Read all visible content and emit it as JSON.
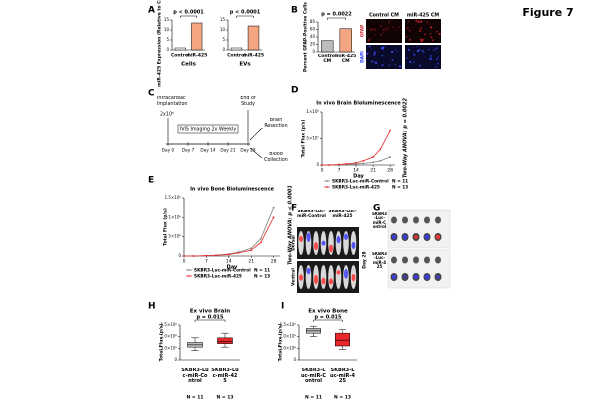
{
  "figure": {
    "title": "Figure 7",
    "panels": [
      "A",
      "B",
      "C",
      "D",
      "E",
      "F",
      "G",
      "H",
      "I"
    ]
  },
  "chart_data": [
    {
      "type": "bar",
      "ylabel": "miR-425 Expression (Relative to Control)",
      "xlabel": "Cells",
      "categories": [
        "Control",
        "miR-425"
      ],
      "values": [
        1,
        13.5
      ],
      "colors": [
        "#ffffff",
        "#f4a582"
      ],
      "ylim": [
        0,
        15
      ],
      "yticks": [
        0,
        5,
        10,
        15
      ],
      "annotation": "p < 0.0001"
    },
    {
      "type": "bar",
      "xlabel": "EVs",
      "categories": [
        "Control",
        "miR-425"
      ],
      "values": [
        1,
        12
      ],
      "colors": [
        "#ffffff",
        "#f4a582"
      ],
      "ylim": [
        0,
        15
      ],
      "yticks": [
        0,
        5,
        10,
        15
      ],
      "annotation": "p < 0.0001"
    },
    {
      "type": "bar",
      "ylabel": "Percent GFAP-Positive Cells",
      "categories": [
        "Control CM",
        "miR-425 CM"
      ],
      "values": [
        30,
        62
      ],
      "colors": [
        "#bdbdbd",
        "#f4a582"
      ],
      "ylim": [
        0,
        80
      ],
      "yticks": [
        0,
        20,
        40,
        60,
        80
      ],
      "annotation": "p = 0.0022"
    },
    {
      "type": "line",
      "title": "In vivo Brain Bioluminescence",
      "xlabel": "Day",
      "ylabel": "Total Flux (p/s)",
      "x": [
        0,
        3,
        7,
        10,
        14,
        17,
        21,
        24,
        28
      ],
      "xlim": [
        0,
        30
      ],
      "xticks": [
        0,
        7,
        14,
        21,
        28
      ],
      "ylim": [
        0,
        100000000
      ],
      "yticks": [
        {
          "value": 0,
          "label": "0"
        },
        {
          "value": 50000000,
          "label": "5×10⁷"
        },
        {
          "value": 100000000,
          "label": "1×10⁸"
        }
      ],
      "series": [
        {
          "name": "SKBR3-Luc-miR-Control",
          "n": "N = 11",
          "color": "#7f7f7f",
          "values": [
            0,
            0,
            1000000,
            1000000,
            2000000,
            3000000,
            5000000,
            8000000,
            15000000
          ]
        },
        {
          "name": "SKBR3-Luc-miR-425",
          "n": "N = 13",
          "color": "#e8282b",
          "values": [
            0,
            0,
            1000000,
            2000000,
            4000000,
            8000000,
            15000000,
            30000000,
            65000000
          ]
        }
      ],
      "annotation": "Two-Way ANOVA: p = 0.0022"
    },
    {
      "type": "line",
      "title": "In vivo Bone Bioluminescence",
      "xlabel": "Day",
      "ylabel": "Total Flux (p/s)",
      "x": [
        0,
        3,
        7,
        10,
        14,
        17,
        21,
        24,
        28
      ],
      "xlim": [
        0,
        30
      ],
      "xticks": [
        0,
        7,
        14,
        21,
        28
      ],
      "ylim": [
        0,
        1500000000
      ],
      "yticks": [
        {
          "value": 0,
          "label": "0"
        },
        {
          "value": 500000000,
          "label": "5×10⁸"
        },
        {
          "value": 1000000000,
          "label": "1×10⁹"
        },
        {
          "value": 1500000000,
          "label": "1.5×10⁹"
        }
      ],
      "series": [
        {
          "name": "SKBR3-Luc-miR-Control",
          "n": "N = 11",
          "color": "#7f7f7f",
          "values": [
            0,
            0,
            10000000,
            20000000,
            50000000,
            100000000,
            200000000,
            450000000,
            1250000000
          ]
        },
        {
          "name": "SKBR3-Luc-miR-425",
          "n": "N = 13",
          "color": "#e8282b",
          "values": [
            0,
            0,
            10000000,
            20000000,
            40000000,
            80000000,
            150000000,
            350000000,
            1000000000
          ]
        }
      ],
      "annotation": "Two-Way ANOVA: p < 0.0001"
    },
    {
      "type": "box",
      "title": "Ex vivo Brain",
      "ylabel": "Total Flux (p/s)",
      "categories": [
        "SKBR3-Luc-miR-Control",
        "SKBR3-Luc-miR-425"
      ],
      "counts": [
        "N = 11",
        "N = 13"
      ],
      "colors": [
        "#bdbdbd",
        "#e8282b"
      ],
      "boxes": [
        {
          "min": 400000,
          "q1": 550000,
          "median": 650000,
          "q3": 750000,
          "max": 950000
        },
        {
          "min": 550000,
          "q1": 700000,
          "median": 800000,
          "q3": 950000,
          "max": 1150000
        }
      ],
      "ylim": [
        0,
        1500000
      ],
      "yticks": [
        {
          "value": 0,
          "label": "0"
        },
        {
          "value": 500000,
          "label": "5.0×10⁵"
        },
        {
          "value": 1000000,
          "label": "1.0×10⁶"
        },
        {
          "value": 1500000,
          "label": "1.5×10⁶"
        }
      ],
      "annotation": "p = 0.015"
    },
    {
      "type": "box",
      "title": "Ex vivo Bone",
      "ylabel": "Total Flux (p/s)",
      "categories": [
        "SKBR3-Luc-miR-Control",
        "SKBR3-Luc-miR-425"
      ],
      "counts": [
        "N = 11",
        "N = 13"
      ],
      "colors": [
        "#bdbdbd",
        "#e8282b"
      ],
      "boxes": [
        {
          "min": 1000000000,
          "q1": 1150000000,
          "median": 1250000000,
          "q3": 1350000000,
          "max": 1450000000
        },
        {
          "min": 450000000,
          "q1": 600000000,
          "median": 850000000,
          "q3": 1150000000,
          "max": 1300000000
        }
      ],
      "ylim": [
        0,
        1500000000
      ],
      "yticks": [
        {
          "value": 0,
          "label": "0"
        },
        {
          "value": 500000000,
          "label": "5.0×10⁸"
        },
        {
          "value": 1000000000,
          "label": "1.0×10⁹"
        },
        {
          "value": 1500000000,
          "label": "1.5×10⁹"
        }
      ],
      "annotation": "p = 0.015"
    }
  ],
  "panel_b_images": {
    "columns": [
      "Control CM",
      "miR-425 CM"
    ],
    "rows": [
      "GFAP",
      "DAPI"
    ]
  },
  "panel_c": {
    "implantation": "Intracardiac Implantation",
    "cells": "2x10⁵",
    "imaging": "IVIS Imaging 2x Weekly",
    "end": "End of Study",
    "outcomes": [
      "Brain Resection",
      "Blood Collection"
    ],
    "days": [
      "Day 0",
      "Day 7",
      "Day 14",
      "Day 21",
      "Day 28"
    ]
  },
  "panel_f": {
    "columns": [
      "SKBR3-Luc-miR-Control",
      "SKBR3-Luc-miR-425"
    ],
    "rows": [
      "Dorsal",
      "Ventral"
    ],
    "timepoint": "Day 28"
  },
  "panel_g": {
    "rows": [
      "SKBR3-Luc-miR-Control",
      "SKBR3-Luc-miR-425"
    ]
  }
}
